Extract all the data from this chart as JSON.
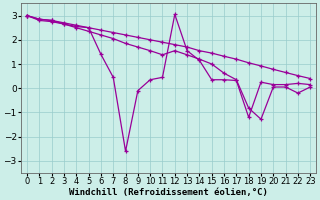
{
  "background_color": "#cceee8",
  "grid_color": "#99cccc",
  "line_color": "#990099",
  "xlabel": "Windchill (Refroidissement éolien,°C)",
  "xlabel_fontsize": 6.5,
  "tick_fontsize": 6,
  "xlim": [
    -0.5,
    23.5
  ],
  "ylim": [
    -3.5,
    3.5
  ],
  "yticks": [
    -3,
    -2,
    -1,
    0,
    1,
    2,
    3
  ],
  "xticks": [
    0,
    1,
    2,
    3,
    4,
    5,
    6,
    7,
    8,
    9,
    10,
    11,
    12,
    13,
    14,
    15,
    16,
    17,
    18,
    19,
    20,
    21,
    22,
    23
  ],
  "series1_x": [
    0,
    1,
    2,
    3,
    4,
    5,
    6,
    7,
    8,
    9,
    10,
    11,
    12,
    13,
    14,
    15,
    16,
    17,
    18,
    19,
    20,
    21,
    22,
    23
  ],
  "series1_y": [
    3.0,
    2.8,
    2.75,
    2.65,
    2.55,
    2.5,
    1.4,
    0.45,
    -2.6,
    -0.1,
    0.35,
    0.45,
    3.05,
    1.55,
    1.15,
    0.35,
    0.35,
    0.32,
    -1.2,
    0.25,
    0.15,
    0.15,
    0.2,
    0.15
  ],
  "series2_x": [
    0,
    1,
    2,
    3,
    4,
    5,
    6,
    7,
    8,
    9,
    10,
    11,
    12,
    13,
    14,
    15,
    16,
    17,
    18,
    19,
    20,
    21,
    22,
    23
  ],
  "series2_y": [
    3.0,
    2.85,
    2.8,
    2.7,
    2.6,
    2.5,
    2.4,
    2.3,
    2.2,
    2.1,
    2.0,
    1.9,
    1.8,
    1.7,
    1.55,
    1.45,
    1.32,
    1.2,
    1.05,
    0.92,
    0.78,
    0.65,
    0.52,
    0.4
  ],
  "series3_x": [
    0,
    1,
    2,
    3,
    4,
    5,
    6,
    7,
    8,
    9,
    10,
    11,
    12,
    13,
    14,
    15,
    16,
    17,
    18,
    19,
    20,
    21,
    22,
    23
  ],
  "series3_y": [
    3.0,
    2.85,
    2.8,
    2.65,
    2.5,
    2.35,
    2.2,
    2.05,
    1.85,
    1.7,
    1.55,
    1.38,
    1.55,
    1.38,
    1.2,
    1.0,
    0.62,
    0.35,
    -0.82,
    -1.28,
    0.05,
    0.05,
    -0.2,
    0.05
  ]
}
